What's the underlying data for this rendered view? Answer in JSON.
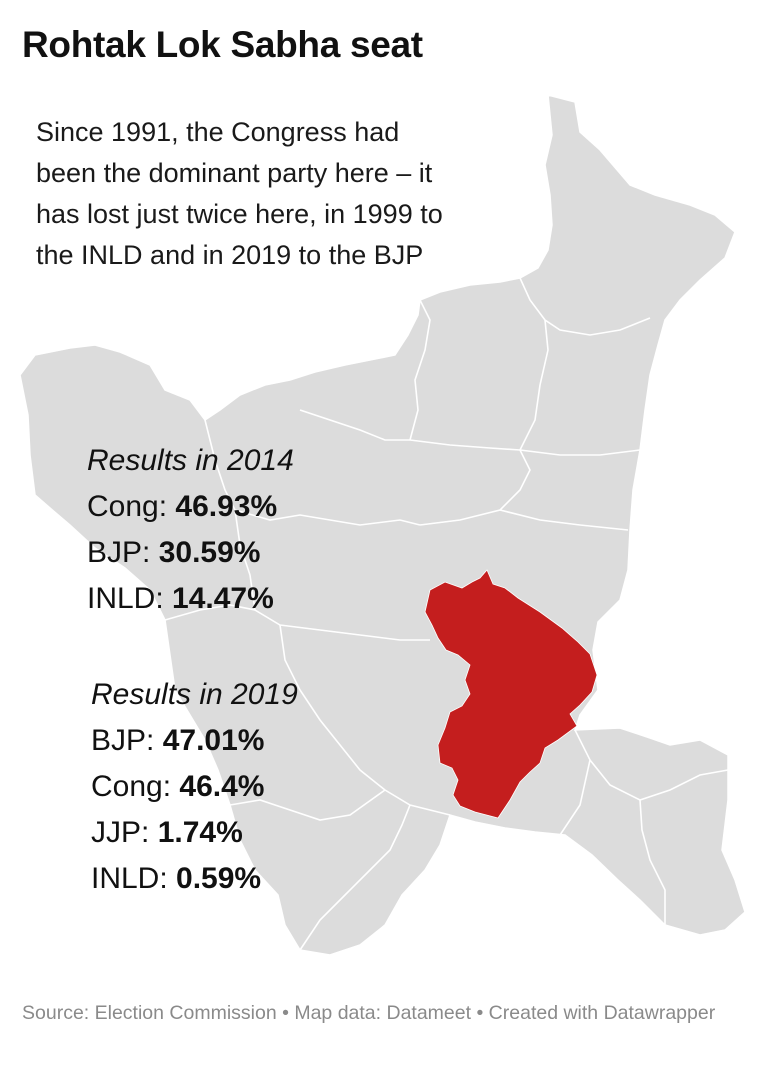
{
  "title": "Rohtak Lok Sabha seat",
  "intro_lines": [
    "Since 1991, the Congress had",
    "been the dominant party here – it",
    "has lost just twice here, in 1999 to",
    "the INLD and in 2019 to the BJP"
  ],
  "results_2014": {
    "heading": "Results in 2014",
    "rows": [
      {
        "party": "Cong:",
        "value": "46.93%"
      },
      {
        "party": "BJP:",
        "value": "30.59%"
      },
      {
        "party": "INLD:",
        "value": "14.47%"
      }
    ]
  },
  "results_2019": {
    "heading": "Results in 2019",
    "rows": [
      {
        "party": "BJP:",
        "value": "47.01%"
      },
      {
        "party": "Cong:",
        "value": "46.4%"
      },
      {
        "party": "JJP:",
        "value": "1.74%"
      },
      {
        "party": "INLD:",
        "value": "0.59%"
      }
    ]
  },
  "source": "Source: Election Commission • Map data: Datameet • Created with Datawrapper",
  "colors": {
    "map_fill": "#dcdcdc",
    "boundary": "#ffffff",
    "highlight": "#c41e1e"
  }
}
